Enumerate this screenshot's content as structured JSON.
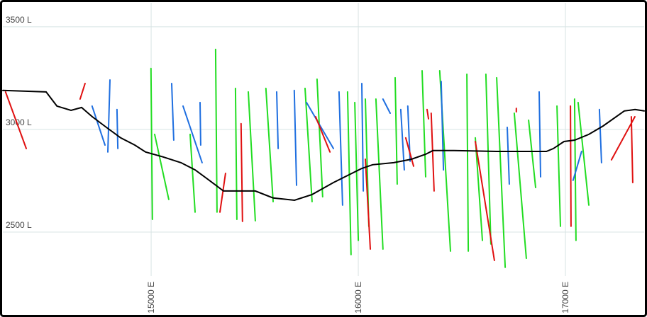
{
  "chart_data": {
    "type": "line",
    "xlim": [
      14284,
      17380
    ],
    "ylim": [
      2286,
      3617
    ],
    "xticks": [
      {
        "value": 15000,
        "label": "15000 E"
      },
      {
        "value": 16000,
        "label": "16000 E"
      },
      {
        "value": 17000,
        "label": "17000 E"
      }
    ],
    "yticks": [
      {
        "value": 2500,
        "label": "2500 L"
      },
      {
        "value": 3000,
        "label": "3000 L"
      },
      {
        "value": 3500,
        "label": "3500 L"
      }
    ],
    "grid": true,
    "series": [
      {
        "color": "#22dd22",
        "x": [
          14999,
          15006,
          null,
          15017,
          15085,
          null,
          15311,
          15318,
          null,
          15407,
          15414,
          null,
          15469,
          15503,
          null,
          15554,
          15589,
          null,
          15743,
          15777,
          null,
          15801,
          15828,
          null,
          15948,
          15965,
          null,
          15983,
          16000,
          null,
          16034,
          16051,
          null,
          16085,
          16119,
          null,
          16178,
          16188,
          null,
          16308,
          16325,
          null,
          16393,
          16445,
          null,
          16524,
          16531,
          null,
          16565,
          16599,
          null,
          16616,
          16640,
          null,
          16668,
          16709,
          null,
          16753,
          16811,
          null,
          16822,
          16856,
          null,
          16959,
          16976,
          null,
          17044,
          17051,
          null,
          17061,
          17113,
          null,
          15188,
          15212
        ],
        "y": [
          3297,
          2562,
          null,
          2976,
          2659,
          null,
          3390,
          2597,
          null,
          3200,
          2562,
          null,
          3183,
          2555,
          null,
          3200,
          2648,
          null,
          3200,
          2648,
          null,
          3245,
          2672,
          null,
          3183,
          2390,
          null,
          3131,
          2459,
          null,
          3148,
          2528,
          null,
          3148,
          2417,
          null,
          3252,
          2734,
          null,
          3286,
          2769,
          null,
          3286,
          2407,
          null,
          3269,
          2407,
          null,
          2959,
          2459,
          null,
          3269,
          2442,
          null,
          3252,
          2328,
          null,
          3079,
          2372,
          null,
          3045,
          2717,
          null,
          3114,
          2528,
          null,
          3148,
          2459,
          null,
          3131,
          2631,
          null,
          2976,
          2597
        ]
      },
      {
        "color": "#1f6fe0",
        "x": [
          14715,
          14777,
          null,
          14801,
          14791,
          null,
          14835,
          14839,
          null,
          15099,
          15109,
          null,
          15154,
          15246,
          null,
          15236,
          15239,
          null,
          15606,
          15613,
          null,
          15691,
          15702,
          null,
          15750,
          15880,
          null,
          15907,
          15924,
          null,
          16017,
          16024,
          null,
          16119,
          16154,
          null,
          16205,
          16222,
          null,
          16239,
          16250,
          null,
          16400,
          16411,
          null,
          16719,
          16729,
          null,
          16873,
          16880,
          null,
          17078,
          17037,
          null,
          17164,
          17174
        ],
        "y": [
          3114,
          2924,
          null,
          3241,
          2890,
          null,
          3097,
          2907,
          null,
          3224,
          2948,
          null,
          3114,
          2838,
          null,
          3131,
          2924,
          null,
          3183,
          2907,
          null,
          3190,
          2728,
          null,
          3131,
          2907,
          null,
          3183,
          2631,
          null,
          3224,
          2700,
          null,
          3148,
          3079,
          null,
          3097,
          2803,
          null,
          3114,
          2845,
          null,
          3234,
          2803,
          null,
          3010,
          2734,
          null,
          3183,
          2769,
          null,
          2893,
          2752,
          null,
          3097,
          2838
        ]
      },
      {
        "color": "#e01010",
        "x": [
          14297,
          14397,
          null,
          14657,
          14681,
          null,
          15434,
          15441,
          null,
          15359,
          15332,
          null,
          15794,
          15863,
          null,
          16034,
          16058,
          null,
          16229,
          16267,
          null,
          16352,
          16366,
          null,
          16565,
          16657,
          null,
          17024,
          17027,
          null,
          17222,
          17335,
          null,
          17318,
          17325,
          null,
          16332,
          16339,
          null,
          16763,
          16763
        ],
        "y": [
          3183,
          2907,
          null,
          3148,
          3224,
          null,
          3028,
          2552,
          null,
          2786,
          2597,
          null,
          3062,
          2890,
          null,
          2855,
          2417,
          null,
          2959,
          2821,
          null,
          3079,
          2700,
          null,
          2941,
          2362,
          null,
          3114,
          2528,
          null,
          2852,
          3062,
          null,
          3062,
          2741,
          null,
          3097,
          3052,
          null,
          3103,
          3086
        ]
      },
      {
        "color": "#000000",
        "x": [
          14284,
          14407,
          14493,
          14545,
          14613,
          14664,
          14716,
          14784,
          14853,
          14921,
          14973,
          15058,
          15144,
          15212,
          15281,
          15349,
          15503,
          15589,
          15692,
          15777,
          15880,
          15949,
          16017,
          16069,
          16171,
          16257,
          16325,
          16360,
          16462,
          16668,
          16908,
          16942,
          16993,
          17045,
          17113,
          17182,
          17284,
          17336,
          17380
        ],
        "y": [
          3190,
          3186,
          3183,
          3114,
          3093,
          3107,
          3062,
          3010,
          2959,
          2924,
          2890,
          2866,
          2838,
          2803,
          2752,
          2700,
          2700,
          2666,
          2655,
          2683,
          2741,
          2776,
          2810,
          2828,
          2838,
          2855,
          2879,
          2897,
          2897,
          2893,
          2893,
          2907,
          2941,
          2948,
          2976,
          3017,
          3090,
          3097,
          3090
        ]
      }
    ]
  }
}
